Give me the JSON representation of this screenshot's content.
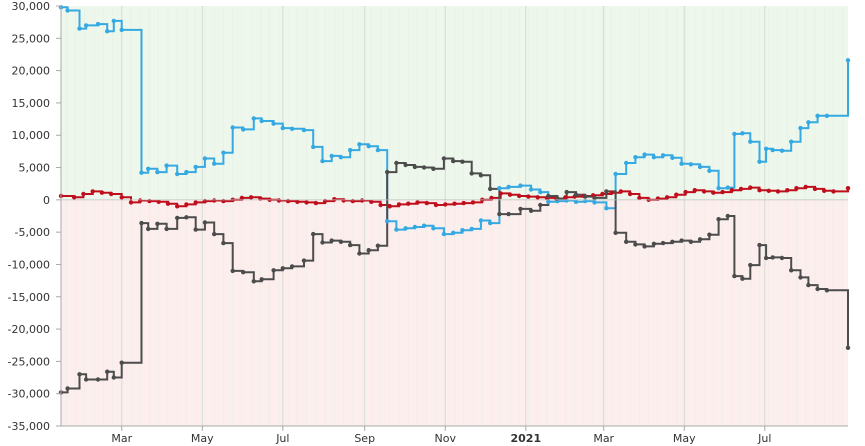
{
  "chart_data": {
    "type": "line",
    "step": true,
    "title": "",
    "xlabel": "",
    "ylabel": "",
    "x_range": [
      "2020-01-15",
      "2021-09-02"
    ],
    "ylim": [
      -35000,
      30000
    ],
    "y_ticks": [
      30000,
      25000,
      20000,
      15000,
      10000,
      5000,
      0,
      -5000,
      -10000,
      -15000,
      -20000,
      -25000,
      -30000,
      -35000
    ],
    "y_tick_labels": [
      "30,000",
      "25,000",
      "20,000",
      "15,000",
      "10,000",
      "5,000",
      "0",
      "-5,000",
      "-10,000",
      "-15,000",
      "-20,000",
      "-25,000",
      "-30,000",
      "-35,000"
    ],
    "x_ticks": [
      {
        "date": "2020-03-01",
        "label": "Mar",
        "bold": false
      },
      {
        "date": "2020-05-01",
        "label": "May",
        "bold": false
      },
      {
        "date": "2020-07-01",
        "label": "Jul",
        "bold": false
      },
      {
        "date": "2020-09-01",
        "label": "Sep",
        "bold": false
      },
      {
        "date": "2020-11-01",
        "label": "Nov",
        "bold": false
      },
      {
        "date": "2021-01-01",
        "label": "2021",
        "bold": true
      },
      {
        "date": "2021-03-01",
        "label": "Mar",
        "bold": false
      },
      {
        "date": "2021-05-01",
        "label": "May",
        "bold": false
      },
      {
        "date": "2021-07-01",
        "label": "Jul",
        "bold": false
      }
    ],
    "grid": true,
    "legend": "none",
    "bands": [
      {
        "from": 0,
        "to": 30000,
        "color": "#eef7ec"
      },
      {
        "from": -35000,
        "to": 0,
        "color": "#fdeeee"
      }
    ],
    "series": [
      {
        "color": "#35a9e1",
        "points": [
          [
            "2020-01-15",
            29800
          ],
          [
            "2020-01-20",
            29300
          ],
          [
            "2020-01-29",
            26500
          ],
          [
            "2020-02-03",
            27000
          ],
          [
            "2020-02-12",
            27200
          ],
          [
            "2020-02-19",
            26100
          ],
          [
            "2020-02-24",
            27700
          ],
          [
            "2020-03-01",
            26300
          ],
          [
            "2020-03-16",
            4200
          ],
          [
            "2020-03-21",
            4800
          ],
          [
            "2020-03-28",
            4300
          ],
          [
            "2020-04-04",
            5300
          ],
          [
            "2020-04-12",
            4000
          ],
          [
            "2020-04-19",
            4300
          ],
          [
            "2020-04-26",
            5100
          ],
          [
            "2020-05-03",
            6400
          ],
          [
            "2020-05-10",
            5600
          ],
          [
            "2020-05-17",
            7300
          ],
          [
            "2020-05-24",
            11200
          ],
          [
            "2020-06-01",
            10900
          ],
          [
            "2020-06-09",
            12600
          ],
          [
            "2020-06-15",
            12200
          ],
          [
            "2020-06-24",
            11800
          ],
          [
            "2020-07-01",
            11100
          ],
          [
            "2020-07-08",
            11000
          ],
          [
            "2020-07-17",
            10800
          ],
          [
            "2020-07-24",
            8200
          ],
          [
            "2020-07-31",
            6000
          ],
          [
            "2020-08-07",
            6800
          ],
          [
            "2020-08-14",
            6600
          ],
          [
            "2020-08-21",
            7700
          ],
          [
            "2020-08-28",
            8600
          ],
          [
            "2020-09-04",
            8300
          ],
          [
            "2020-09-11",
            7700
          ],
          [
            "2020-09-18",
            -3300
          ],
          [
            "2020-09-25",
            -4600
          ],
          [
            "2020-10-02",
            -4400
          ],
          [
            "2020-10-09",
            -4200
          ],
          [
            "2020-10-16",
            -4000
          ],
          [
            "2020-10-23",
            -4400
          ],
          [
            "2020-10-31",
            -5300
          ],
          [
            "2020-11-07",
            -5100
          ],
          [
            "2020-11-14",
            -4700
          ],
          [
            "2020-11-21",
            -4500
          ],
          [
            "2020-11-28",
            -3200
          ],
          [
            "2020-12-05",
            -3600
          ],
          [
            "2020-12-12",
            1800
          ],
          [
            "2020-12-19",
            2000
          ],
          [
            "2020-12-28",
            2200
          ],
          [
            "2021-01-05",
            1600
          ],
          [
            "2021-01-12",
            1200
          ],
          [
            "2021-01-18",
            -300
          ],
          [
            "2021-01-25",
            -200
          ],
          [
            "2021-02-01",
            -100
          ],
          [
            "2021-02-08",
            -300
          ],
          [
            "2021-02-15",
            -200
          ],
          [
            "2021-02-22",
            -400
          ],
          [
            "2021-03-03",
            -1300
          ],
          [
            "2021-03-10",
            4000
          ],
          [
            "2021-03-18",
            5700
          ],
          [
            "2021-03-25",
            6600
          ],
          [
            "2021-04-01",
            7000
          ],
          [
            "2021-04-08",
            6600
          ],
          [
            "2021-04-15",
            6900
          ],
          [
            "2021-04-22",
            6500
          ],
          [
            "2021-04-29",
            5600
          ],
          [
            "2021-05-06",
            5500
          ],
          [
            "2021-05-13",
            5100
          ],
          [
            "2021-05-20",
            4500
          ],
          [
            "2021-05-27",
            1800
          ],
          [
            "2021-06-03",
            1900
          ],
          [
            "2021-06-08",
            10200
          ],
          [
            "2021-06-14",
            10300
          ],
          [
            "2021-06-20",
            9000
          ],
          [
            "2021-06-27",
            5900
          ],
          [
            "2021-07-02",
            7900
          ],
          [
            "2021-07-07",
            7700
          ],
          [
            "2021-07-14",
            7600
          ],
          [
            "2021-07-21",
            9000
          ],
          [
            "2021-07-28",
            11100
          ],
          [
            "2021-08-03",
            12000
          ],
          [
            "2021-08-10",
            13000
          ],
          [
            "2021-08-17",
            13000
          ],
          [
            "2021-09-02",
            21600
          ]
        ]
      },
      {
        "color": "#c00f1c",
        "points": [
          [
            "2020-01-15",
            600
          ],
          [
            "2020-01-25",
            400
          ],
          [
            "2020-02-01",
            900
          ],
          [
            "2020-02-08",
            1300
          ],
          [
            "2020-02-15",
            1100
          ],
          [
            "2020-02-22",
            900
          ],
          [
            "2020-03-01",
            400
          ],
          [
            "2020-03-08",
            -400
          ],
          [
            "2020-03-15",
            -100
          ],
          [
            "2020-03-22",
            -200
          ],
          [
            "2020-03-29",
            -300
          ],
          [
            "2020-04-05",
            -600
          ],
          [
            "2020-04-12",
            -1000
          ],
          [
            "2020-04-19",
            -700
          ],
          [
            "2020-04-26",
            -400
          ],
          [
            "2020-05-03",
            -200
          ],
          [
            "2020-05-10",
            -100
          ],
          [
            "2020-05-17",
            -200
          ],
          [
            "2020-05-24",
            0
          ],
          [
            "2020-05-31",
            300
          ],
          [
            "2020-06-07",
            400
          ],
          [
            "2020-06-14",
            200
          ],
          [
            "2020-06-21",
            0
          ],
          [
            "2020-06-28",
            -100
          ],
          [
            "2020-07-05",
            -200
          ],
          [
            "2020-07-12",
            -300
          ],
          [
            "2020-07-19",
            -400
          ],
          [
            "2020-07-26",
            -500
          ],
          [
            "2020-08-02",
            -200
          ],
          [
            "2020-08-09",
            100
          ],
          [
            "2020-08-16",
            -100
          ],
          [
            "2020-08-23",
            -200
          ],
          [
            "2020-08-30",
            -100
          ],
          [
            "2020-09-06",
            -300
          ],
          [
            "2020-09-13",
            -800
          ],
          [
            "2020-09-20",
            -1000
          ],
          [
            "2020-09-27",
            -700
          ],
          [
            "2020-10-04",
            -600
          ],
          [
            "2020-10-11",
            -400
          ],
          [
            "2020-10-18",
            -500
          ],
          [
            "2020-10-25",
            -800
          ],
          [
            "2020-11-01",
            -700
          ],
          [
            "2020-11-08",
            -600
          ],
          [
            "2020-11-15",
            -500
          ],
          [
            "2020-11-22",
            -400
          ],
          [
            "2020-11-29",
            0
          ],
          [
            "2020-12-06",
            300
          ],
          [
            "2020-12-13",
            1000
          ],
          [
            "2020-12-20",
            800
          ],
          [
            "2020-12-27",
            600
          ],
          [
            "2021-01-03",
            500
          ],
          [
            "2021-01-10",
            400
          ],
          [
            "2021-01-17",
            300
          ],
          [
            "2021-01-24",
            200
          ],
          [
            "2021-01-31",
            400
          ],
          [
            "2021-02-07",
            500
          ],
          [
            "2021-02-14",
            600
          ],
          [
            "2021-02-21",
            700
          ],
          [
            "2021-02-28",
            900
          ],
          [
            "2021-03-07",
            1100
          ],
          [
            "2021-03-14",
            1300
          ],
          [
            "2021-03-21",
            900
          ],
          [
            "2021-03-28",
            300
          ],
          [
            "2021-04-04",
            0
          ],
          [
            "2021-04-11",
            200
          ],
          [
            "2021-04-18",
            400
          ],
          [
            "2021-04-25",
            800
          ],
          [
            "2021-05-02",
            1200
          ],
          [
            "2021-05-09",
            1500
          ],
          [
            "2021-05-16",
            1300
          ],
          [
            "2021-05-23",
            1100
          ],
          [
            "2021-05-30",
            1200
          ],
          [
            "2021-06-06",
            1500
          ],
          [
            "2021-06-13",
            1700
          ],
          [
            "2021-06-20",
            1900
          ],
          [
            "2021-06-27",
            1500
          ],
          [
            "2021-07-04",
            1400
          ],
          [
            "2021-07-11",
            1300
          ],
          [
            "2021-07-18",
            1500
          ],
          [
            "2021-07-25",
            1800
          ],
          [
            "2021-08-01",
            2000
          ],
          [
            "2021-08-08",
            1700
          ],
          [
            "2021-08-15",
            1400
          ],
          [
            "2021-08-22",
            1300
          ],
          [
            "2021-09-02",
            1800
          ]
        ]
      },
      {
        "color": "#4c4c4c",
        "points": [
          [
            "2020-01-15",
            -29800
          ],
          [
            "2020-01-20",
            -29200
          ],
          [
            "2020-01-29",
            -27000
          ],
          [
            "2020-02-03",
            -27800
          ],
          [
            "2020-02-12",
            -27800
          ],
          [
            "2020-02-19",
            -26600
          ],
          [
            "2020-02-24",
            -27500
          ],
          [
            "2020-03-01",
            -25200
          ],
          [
            "2020-03-16",
            -3600
          ],
          [
            "2020-03-21",
            -4500
          ],
          [
            "2020-03-28",
            -3700
          ],
          [
            "2020-04-04",
            -4500
          ],
          [
            "2020-04-12",
            -2800
          ],
          [
            "2020-04-19",
            -2700
          ],
          [
            "2020-04-26",
            -4600
          ],
          [
            "2020-05-03",
            -3500
          ],
          [
            "2020-05-10",
            -5300
          ],
          [
            "2020-05-17",
            -6700
          ],
          [
            "2020-05-24",
            -11000
          ],
          [
            "2020-06-01",
            -11200
          ],
          [
            "2020-06-09",
            -12600
          ],
          [
            "2020-06-15",
            -12300
          ],
          [
            "2020-06-24",
            -10900
          ],
          [
            "2020-07-01",
            -10600
          ],
          [
            "2020-07-08",
            -10300
          ],
          [
            "2020-07-17",
            -9400
          ],
          [
            "2020-07-24",
            -5300
          ],
          [
            "2020-07-31",
            -6600
          ],
          [
            "2020-08-07",
            -6300
          ],
          [
            "2020-08-14",
            -6500
          ],
          [
            "2020-08-21",
            -7000
          ],
          [
            "2020-08-28",
            -8300
          ],
          [
            "2020-09-04",
            -7800
          ],
          [
            "2020-09-11",
            -7100
          ],
          [
            "2020-09-18",
            4300
          ],
          [
            "2020-09-25",
            5700
          ],
          [
            "2020-10-02",
            5400
          ],
          [
            "2020-10-09",
            5100
          ],
          [
            "2020-10-16",
            5000
          ],
          [
            "2020-10-23",
            4800
          ],
          [
            "2020-10-31",
            6400
          ],
          [
            "2020-11-07",
            6000
          ],
          [
            "2020-11-14",
            5900
          ],
          [
            "2020-11-21",
            4100
          ],
          [
            "2020-11-28",
            3800
          ],
          [
            "2020-12-05",
            1700
          ],
          [
            "2020-12-12",
            -2200
          ],
          [
            "2020-12-19",
            -2200
          ],
          [
            "2020-12-28",
            -1400
          ],
          [
            "2021-01-05",
            -1700
          ],
          [
            "2021-01-12",
            -800
          ],
          [
            "2021-01-18",
            600
          ],
          [
            "2021-01-25",
            200
          ],
          [
            "2021-02-01",
            1200
          ],
          [
            "2021-02-08",
            800
          ],
          [
            "2021-02-15",
            500
          ],
          [
            "2021-02-22",
            300
          ],
          [
            "2021-03-03",
            1300
          ],
          [
            "2021-03-10",
            -5100
          ],
          [
            "2021-03-18",
            -6500
          ],
          [
            "2021-03-25",
            -6900
          ],
          [
            "2021-04-01",
            -7200
          ],
          [
            "2021-04-08",
            -6800
          ],
          [
            "2021-04-15",
            -6700
          ],
          [
            "2021-04-22",
            -6500
          ],
          [
            "2021-04-29",
            -6300
          ],
          [
            "2021-05-06",
            -6500
          ],
          [
            "2021-05-13",
            -6100
          ],
          [
            "2021-05-20",
            -5400
          ],
          [
            "2021-05-27",
            -3000
          ],
          [
            "2021-06-03",
            -2500
          ],
          [
            "2021-06-08",
            -11800
          ],
          [
            "2021-06-14",
            -12200
          ],
          [
            "2021-06-20",
            -10100
          ],
          [
            "2021-06-27",
            -7000
          ],
          [
            "2021-07-02",
            -9000
          ],
          [
            "2021-07-07",
            -8900
          ],
          [
            "2021-07-14",
            -9000
          ],
          [
            "2021-07-21",
            -10900
          ],
          [
            "2021-07-28",
            -12000
          ],
          [
            "2021-08-03",
            -13200
          ],
          [
            "2021-08-10",
            -13800
          ],
          [
            "2021-08-17",
            -14000
          ],
          [
            "2021-09-02",
            -22900
          ]
        ]
      }
    ]
  }
}
